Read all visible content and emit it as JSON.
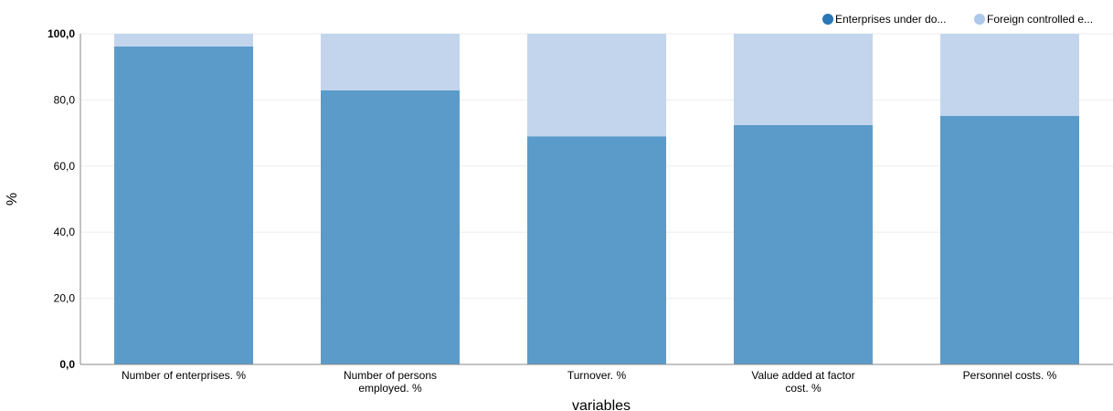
{
  "chart_data": {
    "type": "bar",
    "stacked": true,
    "categories": [
      "Number of enterprises. %",
      "Number of persons employed. %",
      "Turnover. %",
      "Value added at factor cost. %",
      "Personnel costs. %"
    ],
    "category_lines": [
      [
        "Number of enterprises. %"
      ],
      [
        "Number of persons",
        "employed. %"
      ],
      [
        "Turnover. %"
      ],
      [
        "Value added at factor",
        "cost. %"
      ],
      [
        "Personnel costs. %"
      ]
    ],
    "series": [
      {
        "name": "Enterprises under do...",
        "color": "#5b9bc9",
        "values": [
          96.2,
          82.9,
          69.0,
          72.4,
          75.2
        ]
      },
      {
        "name": "Foreign controlled e...",
        "color": "#c3d5ed",
        "values": [
          3.8,
          17.1,
          31.0,
          27.6,
          24.8
        ]
      }
    ],
    "legend_colors": [
      "#2b76b5",
      "#aec8ea"
    ],
    "xlabel": "variables",
    "ylabel": "%",
    "ylim": [
      0,
      100
    ],
    "yticks": [
      "0,0",
      "20,0",
      "40,0",
      "60,0",
      "80,0",
      "100,0"
    ],
    "ytick_values": [
      0,
      20,
      40,
      60,
      80,
      100
    ],
    "grid": true,
    "legend_position": "top-right"
  }
}
